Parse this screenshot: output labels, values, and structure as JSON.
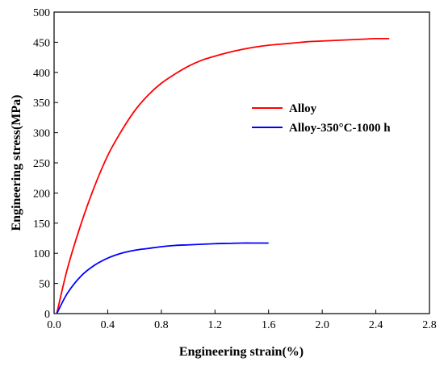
{
  "chart_data": {
    "type": "line",
    "xlabel": "Engineering strain(%)",
    "ylabel": "Engineering stress(MPa)",
    "xlim": [
      0,
      2.8
    ],
    "ylim": [
      0,
      500
    ],
    "x_ticks": [
      "0.0",
      "0.4",
      "0.8",
      "1.2",
      "1.6",
      "2.0",
      "2.4",
      "2.8"
    ],
    "y_ticks": [
      "0",
      "50",
      "100",
      "150",
      "200",
      "250",
      "300",
      "350",
      "400",
      "450",
      "500"
    ],
    "legend_position": "upper-right",
    "grid": false,
    "series": [
      {
        "name": "Alloy",
        "color": "#ff0000",
        "x": [
          0.02,
          0.1,
          0.2,
          0.3,
          0.4,
          0.5,
          0.6,
          0.7,
          0.8,
          0.9,
          1.0,
          1.1,
          1.2,
          1.3,
          1.4,
          1.5,
          1.6,
          1.7,
          1.8,
          1.9,
          2.0,
          2.1,
          2.2,
          2.3,
          2.4,
          2.5
        ],
        "y": [
          0,
          75,
          148,
          210,
          262,
          302,
          336,
          362,
          382,
          397,
          410,
          420,
          427,
          433,
          438,
          442,
          445,
          447,
          449,
          451,
          452,
          453,
          454,
          455,
          456,
          456
        ]
      },
      {
        "name": "Alloy-350°C-1000 h",
        "color": "#0000ff",
        "x": [
          0.02,
          0.1,
          0.2,
          0.3,
          0.4,
          0.5,
          0.6,
          0.7,
          0.8,
          0.9,
          1.0,
          1.1,
          1.2,
          1.3,
          1.4,
          1.5,
          1.6
        ],
        "y": [
          0,
          34,
          62,
          80,
          92,
          100,
          105,
          108,
          111,
          113,
          114,
          115,
          116,
          116.5,
          117,
          117,
          117
        ]
      }
    ]
  }
}
